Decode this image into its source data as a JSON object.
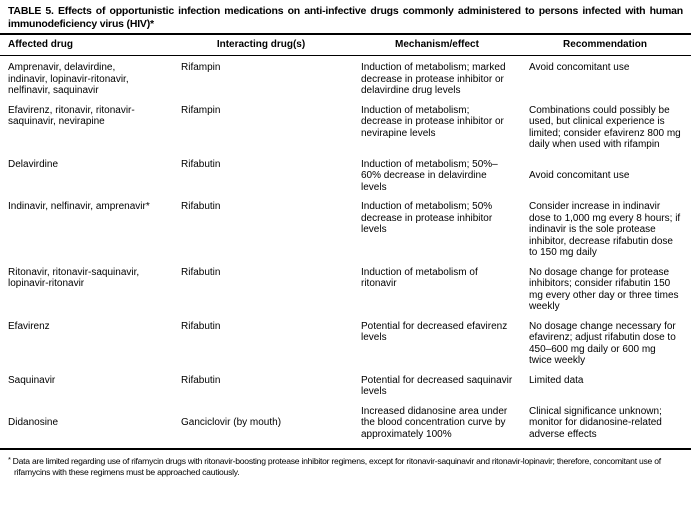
{
  "title": "TABLE 5. Effects of opportunistic infection medications on anti-infective drugs commonly administered to persons infected with human immunodeficiency virus (HIV)*",
  "table": {
    "headers": [
      "Affected drug",
      "Interacting drug(s)",
      "Mechanism/effect",
      "Recommendation"
    ],
    "rows": [
      {
        "affected_drug": "Amprenavir, delavirdine, indinavir, lopinavir-ritonavir, nelfinavir, saquinavir",
        "interacting_drug": "Rifampin",
        "mechanism": "Induction of metabolism; marked decrease in protease inhibitor or delavirdine drug levels",
        "recommendation": "Avoid concomitant use"
      },
      {
        "affected_drug": "Efavirenz, ritonavir, ritonavir-saquinavir, nevirapine",
        "interacting_drug": "Rifampin",
        "mechanism": "Induction of metabolism; decrease in protease inhibitor or nevirapine levels",
        "recommendation": "Combinations could possibly be used, but clinical experience is limited; consider efavirenz 800 mg daily when used with rifampin"
      },
      {
        "affected_drug": "Delavirdine",
        "interacting_drug": "Rifabutin",
        "mechanism": "Induction of metabolism; 50%–60% decrease in delavirdine levels",
        "recommendation": "Avoid concomitant use"
      },
      {
        "affected_drug": "Indinavir, nelfinavir, amprenavir*",
        "interacting_drug": "Rifabutin",
        "mechanism": "Induction of metabolism; 50% decrease in protease inhibitor levels",
        "recommendation": "Consider increase in indinavir dose to 1,000 mg every 8 hours; if indinavir is the sole protease inhibitor, decrease rifabutin dose to 150 mg daily"
      },
      {
        "affected_drug": "Ritonavir, ritonavir-saquinavir, lopinavir-ritonavir",
        "interacting_drug": "Rifabutin",
        "mechanism": "Induction of metabolism of ritonavir",
        "recommendation": "No dosage change for protease inhibitors; consider rifabutin 150 mg every other day or three times weekly"
      },
      {
        "affected_drug": "Efavirenz",
        "interacting_drug": "Rifabutin",
        "mechanism": "Potential for decreased efavirenz levels",
        "recommendation": "No dosage change necessary for efavirenz; adjust rifabutin dose to 450–600 mg daily or 600 mg twice weekly"
      },
      {
        "affected_drug": "Saquinavir",
        "interacting_drug": "Rifabutin",
        "mechanism": "Potential for decreased saquinavir levels",
        "recommendation": "Limited data"
      },
      {
        "affected_drug": "Didanosine",
        "interacting_drug": "Ganciclovir (by mouth)",
        "mechanism": "Increased didanosine area under the blood concentration curve by approximately 100%",
        "recommendation": "Clinical significance unknown; monitor for didanosine-related adverse effects"
      }
    ]
  },
  "footnote": {
    "marker": "*",
    "text": "Data are limited regarding use of rifamycin drugs with ritonavir-boosting protease inhibitor regimens, except for ritonavir-saquinavir and ritonavir-lopinavir; therefore, concomitant use of rifamycins with these regimens must be approached cautiously."
  },
  "colors": {
    "text": "#000000",
    "background": "#ffffff",
    "rule": "#000000"
  }
}
